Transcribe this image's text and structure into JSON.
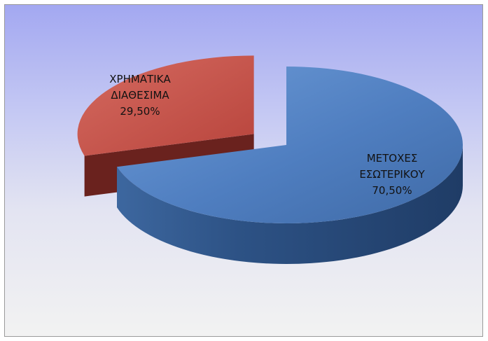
{
  "chart_data": {
    "type": "pie",
    "style": "3d-exploded",
    "title": "",
    "slices": [
      {
        "label_lines": [
          "ΜΕΤΟΧΕΣ",
          "ΕΣΩΤΕΡΙΚΟΥ"
        ],
        "value_label": "70,50%",
        "value": 70.5,
        "color": "#4f7ec0",
        "side_color": "#2f5587"
      },
      {
        "label_lines": [
          "ΧΡΗΜΑΤΙΚΑ",
          "ΔΙΑΘΕΣΙΜΑ"
        ],
        "value_label": "29,50%",
        "value": 29.5,
        "color": "#c34f47",
        "side_color": "#6a221e"
      }
    ],
    "legend": "none",
    "background": {
      "top_color": "#a3a8f1",
      "bottom_color": "#f2f2f2",
      "border_color": "#9a9a9a"
    }
  }
}
